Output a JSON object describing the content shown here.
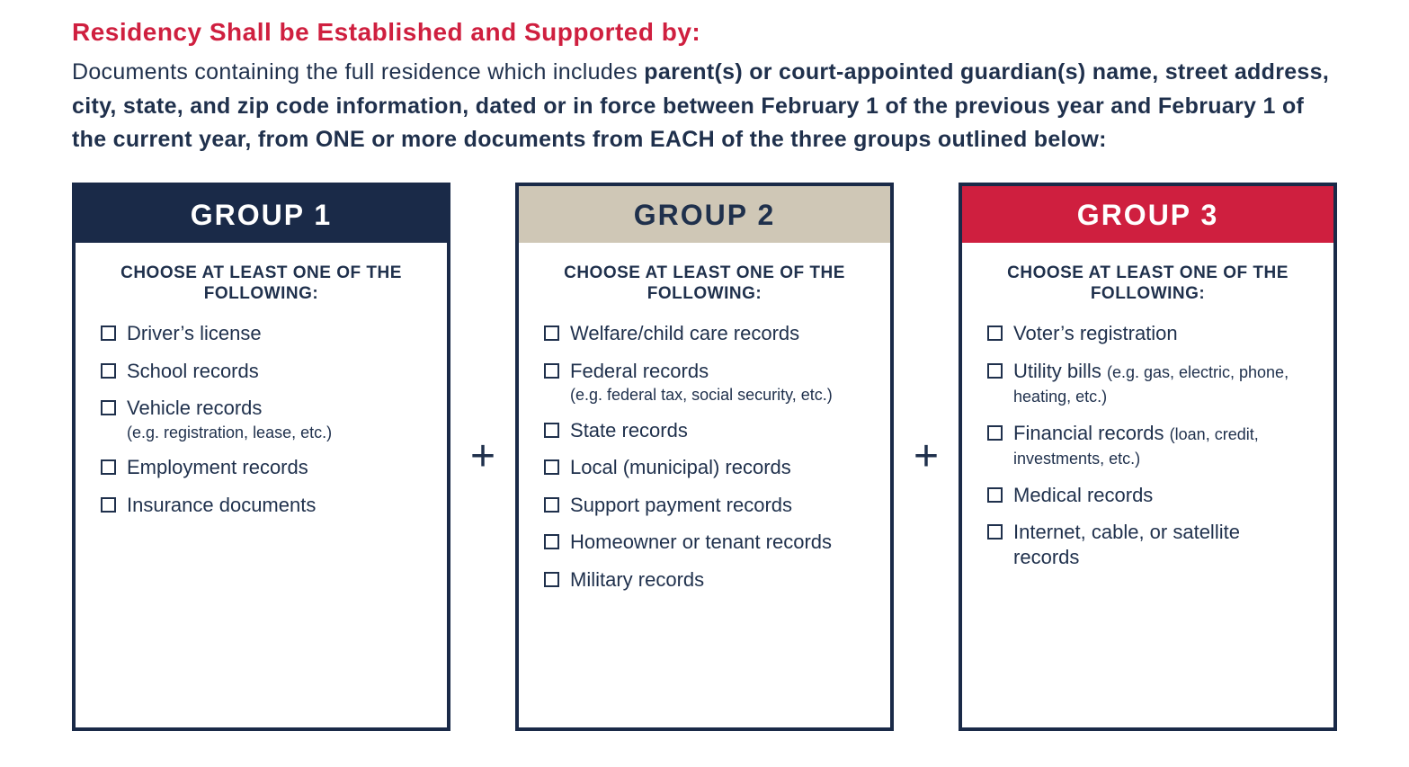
{
  "colors": {
    "navy": "#1a2a48",
    "tan": "#cfc7b6",
    "red": "#cf1f3f",
    "text": "#1f304c",
    "heading": "#cf1f3f"
  },
  "heading": "Residency Shall be Established and Supported by:",
  "intro_prefix": "Documents containing the full residence which includes ",
  "intro_bold": "parent(s) or court-appointed guardian(s) name, street address, city, state, and zip code information, dated or in force between February 1 of the previous year and February 1 of the current year, from ONE or more documents from EACH of the three groups outlined below:",
  "choose_text": "CHOOSE AT LEAST ONE OF THE FOLLOWING:",
  "plus": "+",
  "groups": [
    {
      "title": "GROUP 1",
      "header_bg": "#1a2a48",
      "header_fg": "#ffffff",
      "border": "#1a2a48",
      "items": [
        {
          "label": "Driver’s license"
        },
        {
          "label": "School records"
        },
        {
          "label": "Vehicle records",
          "sub": "(e.g. registration, lease, etc.)"
        },
        {
          "label": "Employment records"
        },
        {
          "label": "Insurance documents"
        }
      ]
    },
    {
      "title": "GROUP 2",
      "header_bg": "#cfc7b6",
      "header_fg": "#1f304c",
      "border": "#1a2a48",
      "items": [
        {
          "label": "Welfare/child care records"
        },
        {
          "label": "Federal records",
          "sub": "(e.g. federal tax, social security, etc.)"
        },
        {
          "label": "State records"
        },
        {
          "label": "Local (municipal) records"
        },
        {
          "label": "Support payment records"
        },
        {
          "label": "Homeowner or tenant records"
        },
        {
          "label": "Military records"
        }
      ]
    },
    {
      "title": "GROUP 3",
      "header_bg": "#cf1f3f",
      "header_fg": "#ffffff",
      "border": "#1a2a48",
      "items": [
        {
          "label": "Voter’s registration"
        },
        {
          "label": "Utility bills",
          "sub_inline": "(e.g. gas, electric, phone, heating, etc.)"
        },
        {
          "label": "Financial records",
          "sub_inline": "(loan, credit, investments, etc.)"
        },
        {
          "label": "Medical records"
        },
        {
          "label": "Internet, cable, or satellite records"
        }
      ]
    }
  ]
}
